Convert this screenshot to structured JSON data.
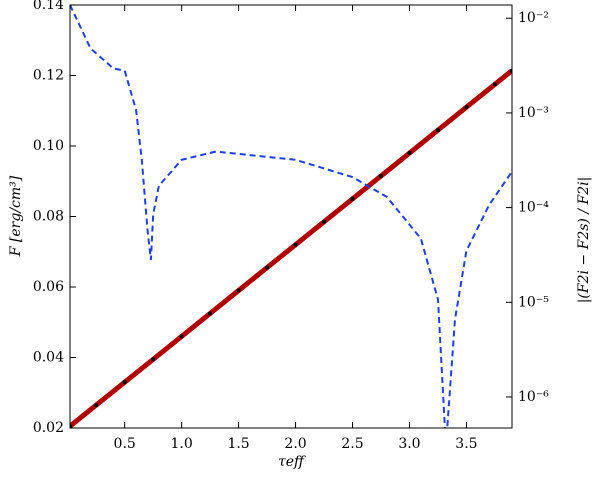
{
  "chart_data": {
    "type": "line",
    "xlabel": "τeff",
    "ylabel": "F [erg/cm³]",
    "y2label": "|(F2i − F2s) / F2i|",
    "xlim": [
      0.02,
      3.9
    ],
    "ylim": [
      0.02,
      0.14
    ],
    "y2lim": [
      4.7e-07,
      0.0138
    ],
    "y2scale": "log",
    "xticks": [
      0.5,
      {
        "value": 1,
        "label": "1.0"
      },
      1.5,
      {
        "value": 2,
        "label": "2.0"
      },
      2.5,
      {
        "value": 3,
        "label": "3.0"
      },
      3.5
    ],
    "yticks": [
      0.02,
      0.04,
      0.06,
      0.08,
      {
        "value": 0.1,
        "label": "0.10"
      },
      0.12,
      0.14
    ],
    "y2ticks": [
      {
        "value": 0.01,
        "label": "10⁻²"
      },
      {
        "value": 0.001,
        "label": "10⁻³"
      },
      {
        "value": 0.0001,
        "label": "10⁻⁴"
      },
      {
        "value": 1e-05,
        "label": "10⁻⁵"
      },
      {
        "value": 1e-06,
        "label": "10⁻⁶"
      }
    ],
    "series": [
      {
        "color": "#b00000",
        "style": "solid-dots",
        "x": [
          0.02,
          0.25,
          0.5,
          0.75,
          1.0,
          1.25,
          1.5,
          1.75,
          2.0,
          2.25,
          2.5,
          2.75,
          3.0,
          3.25,
          3.5,
          3.75,
          3.9
        ],
        "values": [
          0.0205,
          0.0265,
          0.033,
          0.0395,
          0.046,
          0.0525,
          0.059,
          0.0655,
          0.072,
          0.0785,
          0.085,
          0.0915,
          0.098,
          0.1045,
          0.111,
          0.1175,
          0.1214
        ]
      },
      {
        "color": "#1f3fe0",
        "style": "dashed",
        "axis": "y2",
        "x": [
          0.02,
          0.2,
          0.4,
          0.5,
          0.6,
          0.65,
          0.7,
          0.73,
          0.75,
          0.8,
          1.0,
          1.3,
          2.0,
          2.5,
          2.8,
          3.1,
          3.25,
          3.32,
          3.4,
          3.5,
          3.7,
          3.9
        ],
        "values": [
          0.0138,
          0.0048,
          0.00295,
          0.0028,
          0.00107,
          0.00032,
          5.8e-05,
          2.8e-05,
          8.5e-05,
          0.00017,
          0.00032,
          0.00039,
          0.00032,
          0.00021,
          0.00013,
          4.7e-05,
          1.07e-05,
          3e-07,
          6.6e-06,
          3.5e-05,
          0.000107,
          0.00024
        ]
      }
    ]
  }
}
